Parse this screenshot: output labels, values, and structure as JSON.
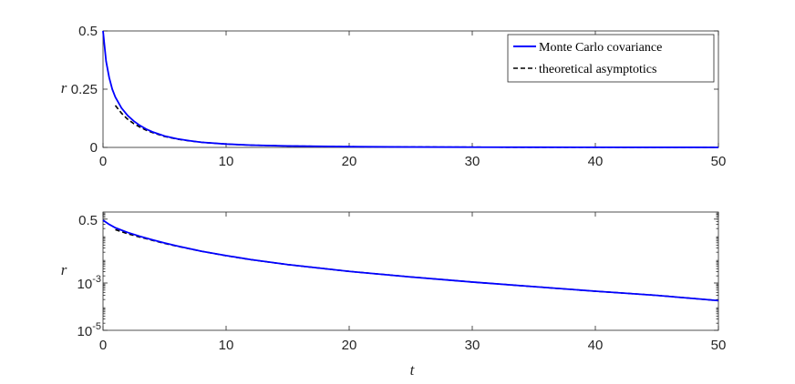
{
  "chart_data": [
    {
      "type": "line",
      "ylabel": "r",
      "xlabel": "",
      "xlim": [
        0,
        50
      ],
      "ylim": [
        0,
        0.5
      ],
      "yscale": "linear",
      "xticks": [
        "0",
        "10",
        "20",
        "30",
        "40",
        "50"
      ],
      "yticks": [
        "0",
        "0.25",
        "0.5"
      ],
      "legend": {
        "placement": "top-right",
        "entries": [
          "Monte Carlo covariance",
          "theoretical asymptotics"
        ]
      },
      "series": [
        {
          "name": "Monte Carlo covariance",
          "color": "#0000ff",
          "style": "solid",
          "x": [
            0,
            0.25,
            0.5,
            0.75,
            1,
            1.5,
            2,
            2.5,
            3,
            3.5,
            4,
            5,
            6,
            7,
            8,
            10,
            12,
            15,
            20,
            25,
            30,
            35,
            40,
            45,
            50
          ],
          "y": [
            0.5,
            0.37,
            0.3,
            0.25,
            0.216,
            0.169,
            0.137,
            0.113,
            0.094,
            0.079,
            0.067,
            0.049,
            0.037,
            0.029,
            0.022,
            0.0144,
            0.0098,
            0.006,
            0.0031,
            0.0018,
            0.0011,
            0.0007,
            0.0005,
            0.0003,
            0.0001
          ]
        },
        {
          "name": "theoretical asymptotics",
          "color": "#000000",
          "style": "dashed",
          "x": [
            1,
            1.5,
            2,
            2.5,
            3,
            3.5,
            4,
            5,
            6,
            7,
            8,
            10,
            12,
            15,
            20,
            25,
            30,
            35,
            40,
            45,
            50
          ],
          "y": [
            0.18,
            0.147,
            0.121,
            0.102,
            0.087,
            0.074,
            0.064,
            0.047,
            0.036,
            0.028,
            0.022,
            0.0142,
            0.0097,
            0.006,
            0.0031,
            0.0018,
            0.0011,
            0.0007,
            0.0005,
            0.0003,
            0.0001
          ]
        }
      ]
    },
    {
      "type": "line",
      "ylabel": "r",
      "xlabel": "t",
      "xlim": [
        0,
        50
      ],
      "ylim": [
        1e-05,
        1
      ],
      "yscale": "log",
      "xticks": [
        "0",
        "10",
        "20",
        "30",
        "40",
        "50"
      ],
      "yticks": [
        {
          "value": 0.5,
          "base": "0.5",
          "exp": ""
        },
        {
          "value": 0.001,
          "base": "10",
          "exp": "-3"
        },
        {
          "value": 1e-05,
          "base": "10",
          "exp": "-5"
        }
      ],
      "series": [
        {
          "name": "Monte Carlo covariance",
          "color": "#0000ff",
          "style": "solid",
          "x": [
            0,
            0.5,
            1,
            2,
            3,
            4,
            5,
            6,
            8,
            10,
            12,
            15,
            20,
            25,
            30,
            35,
            40,
            45,
            50
          ],
          "y": [
            0.45,
            0.3,
            0.216,
            0.137,
            0.094,
            0.067,
            0.049,
            0.037,
            0.022,
            0.0144,
            0.0098,
            0.006,
            0.0031,
            0.0018,
            0.0011,
            0.0007,
            0.00045,
            0.0003,
            0.00018
          ]
        },
        {
          "name": "theoretical asymptotics",
          "color": "#000000",
          "style": "dashed",
          "x": [
            1,
            2,
            3,
            4,
            5,
            6,
            8,
            10,
            12,
            15,
            20,
            25,
            30,
            35,
            40,
            45,
            50
          ],
          "y": [
            0.18,
            0.121,
            0.087,
            0.064,
            0.047,
            0.036,
            0.022,
            0.0142,
            0.0097,
            0.006,
            0.0031,
            0.0018,
            0.0011,
            0.0007,
            0.00045,
            0.0003,
            0.00018
          ]
        }
      ]
    }
  ]
}
